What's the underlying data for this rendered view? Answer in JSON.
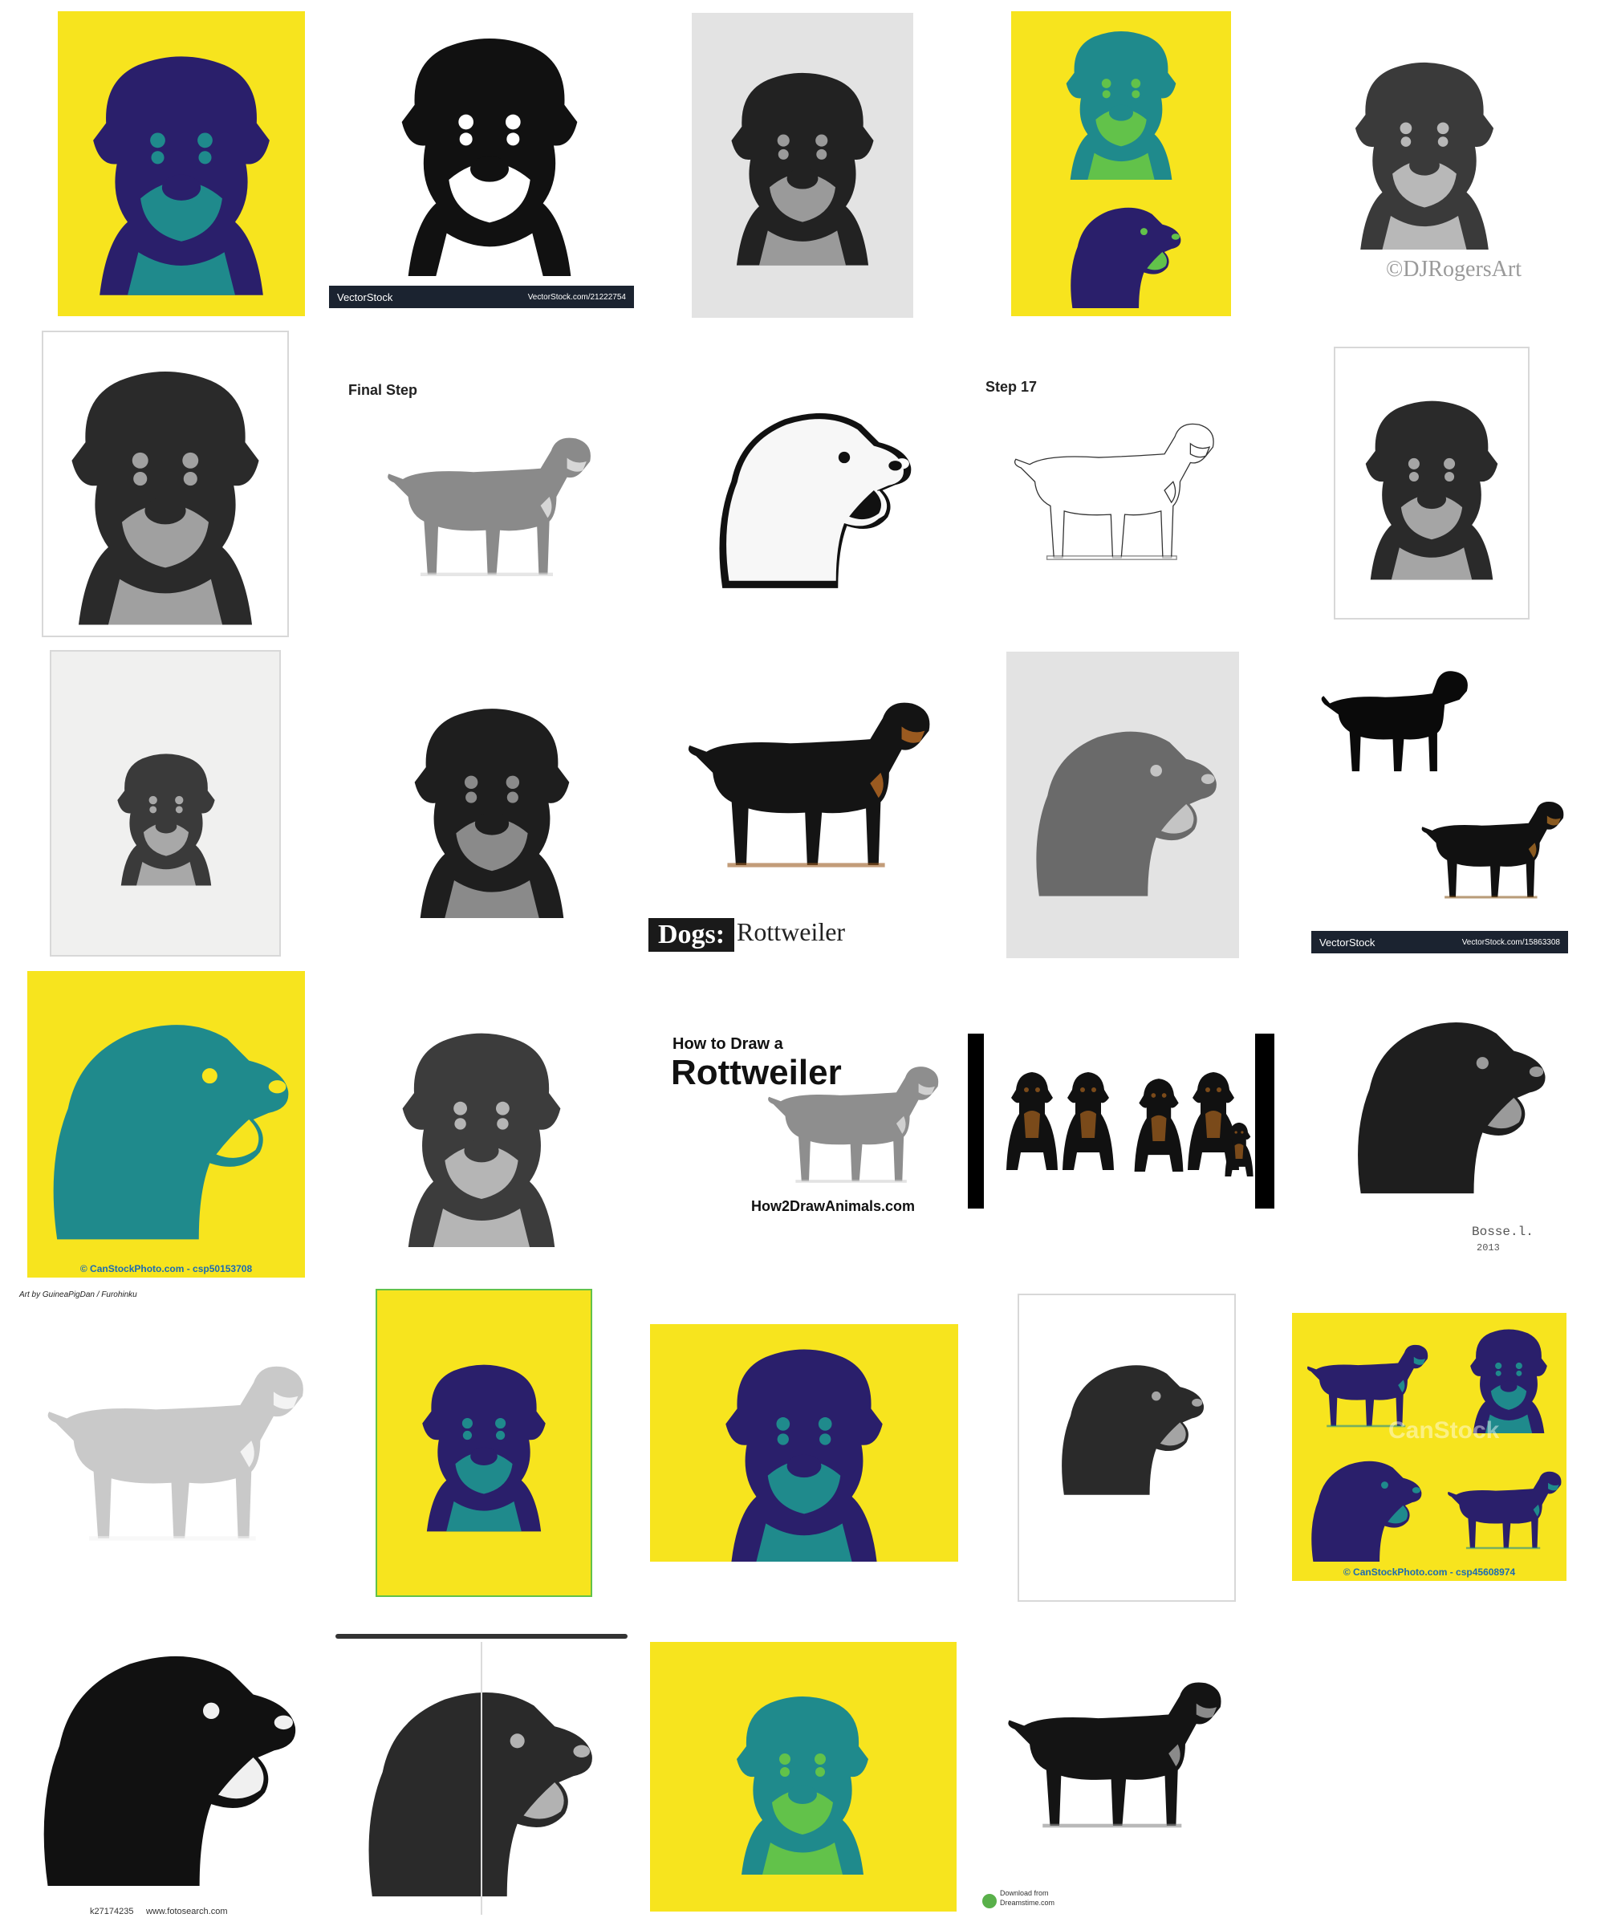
{
  "captions": {
    "vectorstock_brand": "VectorStock",
    "vectorstock_id_1": "VectorStock.com/21222754",
    "vectorstock_id_2": "VectorStock.com/15863308",
    "djrogers": "©DJRogersArt",
    "final_step": "Final Step",
    "step_17": "Step 17",
    "dogs_prefix": "Dogs:",
    "dogs_breed": "Rottweiler",
    "canstock_1": "© CanStockPhoto.com - csp50153708",
    "how_to_draw": "How to Draw a",
    "how_to_draw_breed": "Rottweiler",
    "how2draw_site": "How2DrawAnimals.com",
    "bosse": "Bosse.l.",
    "bosse_year": "2013",
    "art_by": "Art by GuineaPigDan / Furohinku",
    "canstock_watermark": "CanStock",
    "canstock_2": "© CanStockPhoto.com - csp45608974",
    "fotosearch_id": "k27174235",
    "fotosearch_site": "www.fotosearch.com",
    "dreamstime_download": "Download from",
    "dreamstime_site": "Dreamstime.com"
  },
  "colors": {
    "yellow": "#f7e41e",
    "teal": "#1f8a8c",
    "navy": "#2a1f6b",
    "green": "#62c24a",
    "ink": "#1a1a1a",
    "pencil": "#6e6e6e"
  },
  "icons": [
    "rottweiler-portrait",
    "rottweiler-standing",
    "rottweiler-silhouette",
    "rottweiler-group"
  ]
}
